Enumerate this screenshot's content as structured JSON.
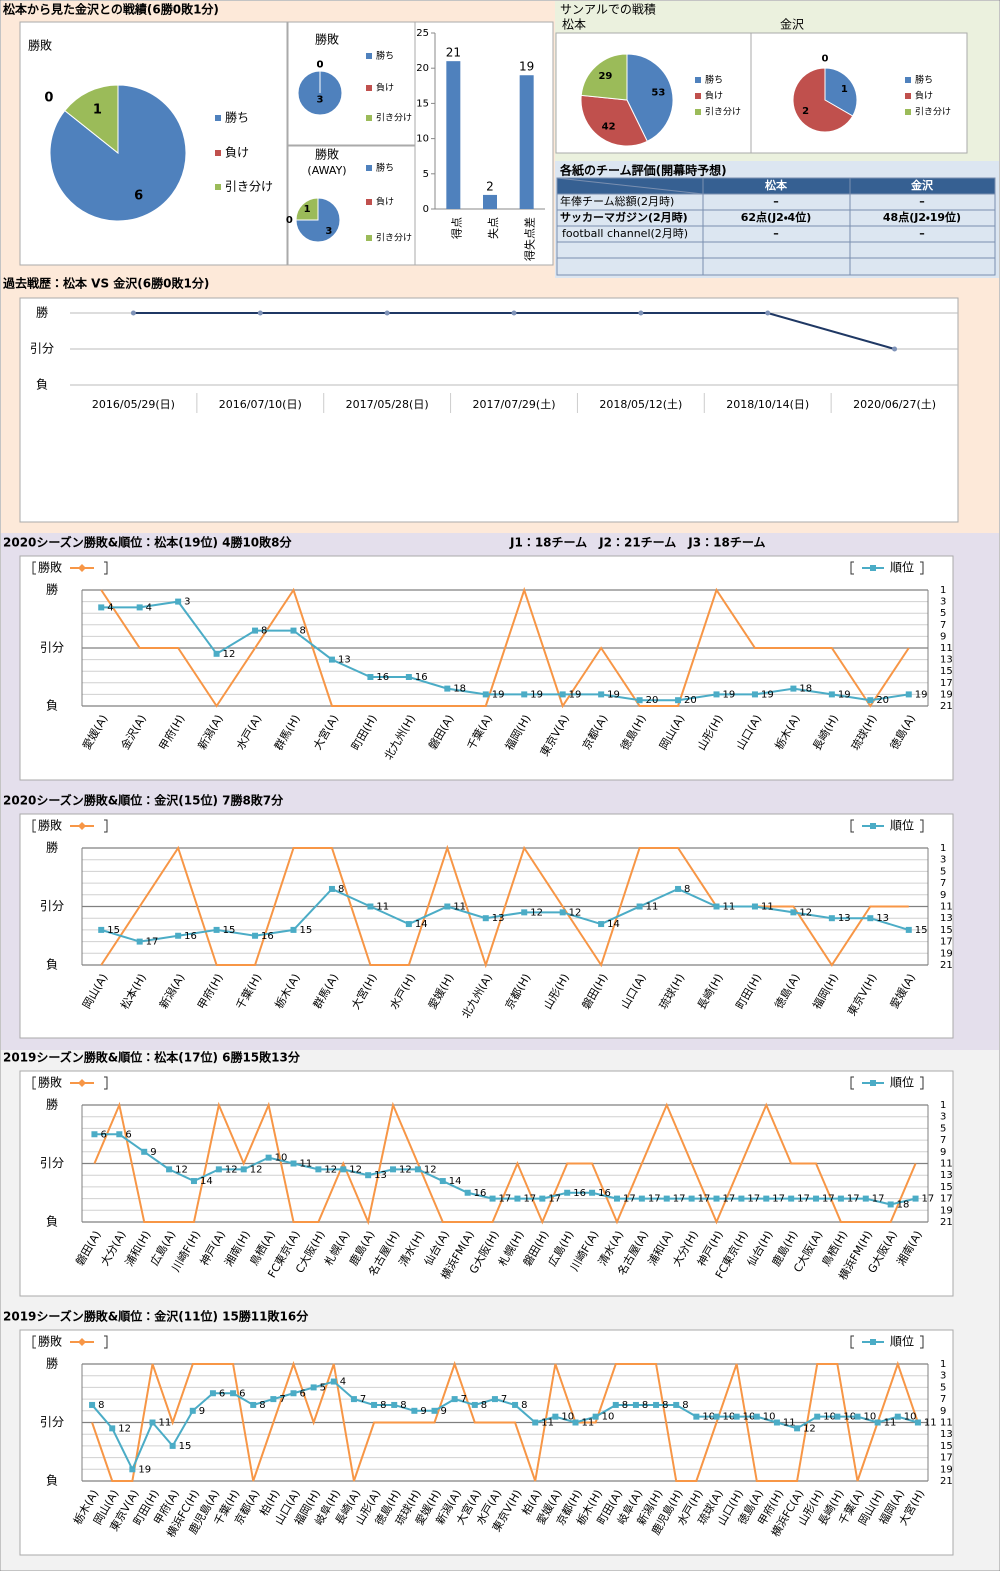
{
  "sections": {
    "record": "松本から見た金沢との戦績(6勝0敗1分)",
    "sanal": "サンアルでの戦積",
    "history": "過去戦歴：松本 VS 金沢(6勝0敗1分)",
    "s2020_matsumoto": "2020シーズン勝敗&順位：松本(19位) 4勝10敗8分",
    "leagues": "J1：18チーム　J2：21チーム　J3：18チーム",
    "s2020_kanazawa": "2020シーズン勝敗&順位：金沢(15位) 7勝8敗7分",
    "s2019_matsumoto": "2019シーズン勝敗&順位：松本(17位) 6勝15敗13分",
    "s2019_kanazawa": "2019シーズン勝敗&順位：金沢(11位) 15勝11敗16分"
  },
  "table": {
    "title": "各紙のチーム評価(開幕時予想)",
    "header": [
      "松本",
      "金沢"
    ],
    "rows": [
      [
        "年俸チーム総額(2月時)",
        "–",
        "–"
      ],
      [
        "サッカーマガジン(2月時)",
        "62点(J2・4位)",
        "48点(J2・19位)"
      ],
      [
        "football channel(2月時)",
        "–",
        "–"
      ]
    ]
  },
  "chart_data": [
    {
      "type": "pie",
      "title": "勝敗",
      "categories": [
        "勝ち",
        "負け",
        "引き分け"
      ],
      "values": [
        6,
        0,
        1
      ],
      "colors": [
        "#4f81bd",
        "#c0504d",
        "#9bbb59"
      ]
    },
    {
      "type": "pie",
      "title": "勝敗",
      "categories": [
        "勝ち",
        "負け",
        "引き分け"
      ],
      "values": [
        3,
        0,
        0
      ],
      "colors": [
        "#4f81bd",
        "#c0504d",
        "#9bbb59"
      ]
    },
    {
      "type": "pie",
      "title": "勝敗",
      "subtitle": "(AWAY)",
      "categories": [
        "勝ち",
        "負け",
        "引き分け"
      ],
      "values": [
        3,
        0,
        1
      ],
      "colors": [
        "#4f81bd",
        "#c0504d",
        "#9bbb59"
      ]
    },
    {
      "type": "bar",
      "categories": [
        "得点",
        "失点",
        "得失点差"
      ],
      "values": [
        21,
        2,
        19
      ],
      "color": "#4f81bd",
      "ylim": [
        0,
        25
      ],
      "yticks": [
        0,
        5,
        10,
        15,
        20,
        25
      ]
    },
    {
      "type": "pie",
      "title": "松本",
      "categories": [
        "勝ち",
        "負け",
        "引き分け"
      ],
      "values": [
        53,
        42,
        29
      ],
      "colors": [
        "#4f81bd",
        "#c0504d",
        "#9bbb59"
      ]
    },
    {
      "type": "pie",
      "title": "金沢",
      "categories": [
        "勝ち",
        "負け",
        "引き分け"
      ],
      "values": [
        1,
        2,
        0
      ],
      "colors": [
        "#4f81bd",
        "#c0504d",
        "#9bbb59"
      ]
    },
    {
      "type": "line",
      "categories": [
        "2016/05/29(日)",
        "2016/07/10(日)",
        "2017/05/28(日)",
        "2017/07/29(土)",
        "2018/05/12(土)",
        "2018/10/14(日)",
        "2020/06/27(土)"
      ],
      "values": [
        1,
        1,
        1,
        1,
        1,
        1,
        0
      ],
      "color": "#1f3864",
      "ylim": [
        -1,
        1
      ],
      "yticks": [
        {
          "value": -1,
          "label": "負"
        },
        {
          "value": 0,
          "label": "引分"
        },
        {
          "value": 1,
          "label": "勝"
        }
      ],
      "grid": true
    },
    {
      "type": "combo",
      "categories": [
        "愛媛(A)",
        "金沢(A)",
        "甲府(H)",
        "新潟(A)",
        "水戸(A)",
        "群馬(H)",
        "大宮(A)",
        "町田(H)",
        "北九州(H)",
        "磐田(A)",
        "千葉(A)",
        "福岡(H)",
        "東京V(A)",
        "京都(A)",
        "徳島(H)",
        "岡山(A)",
        "山形(H)",
        "山口(A)",
        "栃木(A)",
        "長崎(H)",
        "琉球(H)",
        "徳島(A)"
      ],
      "series": [
        {
          "name": "勝敗",
          "color": "#f79646",
          "values": [
            1,
            0,
            0,
            -1,
            0,
            1,
            -1,
            -1,
            -1,
            -1,
            -1,
            1,
            -1,
            0,
            -1,
            -1,
            1,
            0,
            0,
            0,
            -1,
            0
          ]
        },
        {
          "name": "順位",
          "color": "#4bacc6",
          "axis": "y2",
          "values": [
            4,
            4,
            3,
            12,
            8,
            8,
            13,
            16,
            16,
            18,
            19,
            19,
            19,
            19,
            20,
            20,
            19,
            19,
            18,
            19,
            20,
            19
          ]
        }
      ],
      "ylim": [
        -1,
        1
      ],
      "yticks": [
        {
          "value": -1,
          "label": "負"
        },
        {
          "value": 0,
          "label": "引分"
        },
        {
          "value": 1,
          "label": "勝"
        }
      ],
      "y2lim": [
        21,
        1
      ],
      "y2ticks": [
        1,
        3,
        5,
        7,
        9,
        11,
        13,
        15,
        17,
        19,
        21
      ]
    },
    {
      "type": "combo",
      "categories": [
        "岡山(A)",
        "松本(H)",
        "新潟(A)",
        "甲府(H)",
        "千葉(H)",
        "栃木(A)",
        "群馬(A)",
        "大宮(H)",
        "水戸(H)",
        "愛媛(H)",
        "北九州(A)",
        "京都(H)",
        "山形(H)",
        "磐田(H)",
        "山口(A)",
        "琉球(H)",
        "長崎(H)",
        "町田(H)",
        "徳島(A)",
        "福岡(H)",
        "東京V(H)",
        "愛媛(A)"
      ],
      "series": [
        {
          "name": "勝敗",
          "color": "#f79646",
          "values": [
            -1,
            0,
            1,
            -1,
            -1,
            1,
            1,
            -1,
            -1,
            1,
            -1,
            1,
            0,
            -1,
            1,
            1,
            0,
            0,
            0,
            -1,
            0,
            0
          ]
        },
        {
          "name": "順位",
          "color": "#4bacc6",
          "axis": "y2",
          "values": [
            15,
            17,
            16,
            15,
            16,
            15,
            8,
            11,
            14,
            11,
            13,
            12,
            12,
            14,
            11,
            8,
            11,
            11,
            12,
            13,
            13,
            15
          ]
        }
      ],
      "ylim": [
        -1,
        1
      ],
      "yticks": [
        {
          "value": -1,
          "label": "負"
        },
        {
          "value": 0,
          "label": "引分"
        },
        {
          "value": 1,
          "label": "勝"
        }
      ],
      "y2lim": [
        21,
        1
      ],
      "y2ticks": [
        1,
        3,
        5,
        7,
        9,
        11,
        13,
        15,
        17,
        19,
        21
      ]
    },
    {
      "type": "combo",
      "categories": [
        "磐田(A)",
        "大分(A)",
        "浦和(H)",
        "広島(A)",
        "川崎F(H)",
        "神戸(A)",
        "湘南(H)",
        "鳥栖(A)",
        "FC東京(A)",
        "C大阪(H)",
        "札幌(A)",
        "鹿島(A)",
        "名古屋(H)",
        "清水(H)",
        "仙台(A)",
        "横浜FM(A)",
        "G大阪(H)",
        "札幌(H)",
        "磐田(H)",
        "広島(H)",
        "川崎F(A)",
        "清水(A)",
        "名古屋(A)",
        "浦和(A)",
        "大分(H)",
        "神戸(H)",
        "FC東京(H)",
        "仙台(H)",
        "鹿島(H)",
        "C大阪(A)",
        "鳥栖(H)",
        "横浜FM(H)",
        "G大阪(A)",
        "湘南(A)"
      ],
      "series": [
        {
          "name": "勝敗",
          "color": "#f79646",
          "values": [
            0,
            1,
            -1,
            -1,
            -1,
            1,
            0,
            1,
            -1,
            -1,
            0,
            -1,
            1,
            0,
            -1,
            -1,
            -1,
            0,
            -1,
            0,
            0,
            -1,
            0,
            1,
            0,
            -1,
            0,
            1,
            0,
            0,
            -1,
            -1,
            -1,
            0
          ]
        },
        {
          "name": "順位",
          "color": "#4bacc6",
          "axis": "y2",
          "values": [
            6,
            6,
            9,
            12,
            14,
            12,
            12,
            10,
            11,
            12,
            12,
            13,
            12,
            12,
            14,
            16,
            17,
            17,
            17,
            16,
            16,
            17,
            17,
            17,
            17,
            17,
            17,
            17,
            17,
            17,
            17,
            17,
            18,
            17
          ]
        }
      ],
      "ylim": [
        -1,
        1
      ],
      "yticks": [
        {
          "value": -1,
          "label": "負"
        },
        {
          "value": 0,
          "label": "引分"
        },
        {
          "value": 1,
          "label": "勝"
        }
      ],
      "y2lim": [
        21,
        1
      ],
      "y2ticks": [
        1,
        3,
        5,
        7,
        9,
        11,
        13,
        15,
        17,
        19,
        21
      ]
    },
    {
      "type": "combo",
      "categories": [
        "栃木(A)",
        "岡山(A)",
        "東京V(A)",
        "町田(H)",
        "甲府(A)",
        "横浜FC(H)",
        "鹿児島(A)",
        "千葉(H)",
        "京都(A)",
        "柏(H)",
        "山口(A)",
        "福岡(H)",
        "岐阜(H)",
        "長崎(A)",
        "山形(A)",
        "徳島(H)",
        "琉球(H)",
        "愛媛(H)",
        "新潟(A)",
        "大宮(A)",
        "水戸(A)",
        "東京V(H)",
        "柏(A)",
        "愛媛(A)",
        "京都(H)",
        "栃木(H)",
        "町田(A)",
        "岐阜(A)",
        "新潟(H)",
        "鹿児島(H)",
        "水戸(H)",
        "琉球(A)",
        "山口(H)",
        "徳島(A)",
        "甲府(H)",
        "横浜FC(A)",
        "山形(H)",
        "長崎(H)",
        "千葉(A)",
        "岡山(H)",
        "福岡(A)",
        "大宮(H)"
      ],
      "series": [
        {
          "name": "勝敗",
          "color": "#f79646",
          "values": [
            0,
            -1,
            -1,
            1,
            0,
            1,
            1,
            1,
            -1,
            0,
            1,
            0,
            1,
            -1,
            0,
            0,
            0,
            0,
            1,
            0,
            0,
            0,
            -1,
            1,
            0,
            0,
            1,
            1,
            1,
            -1,
            -1,
            0,
            1,
            -1,
            -1,
            -1,
            1,
            1,
            -1,
            0,
            1,
            0
          ]
        },
        {
          "name": "順位",
          "color": "#4bacc6",
          "axis": "y2",
          "values": [
            8,
            12,
            19,
            11,
            15,
            9,
            6,
            6,
            8,
            7,
            6,
            5,
            4,
            7,
            8,
            8,
            9,
            9,
            7,
            8,
            7,
            8,
            11,
            10,
            11,
            10,
            8,
            8,
            8,
            8,
            10,
            10,
            10,
            10,
            11,
            12,
            10,
            10,
            10,
            11,
            10,
            11
          ]
        }
      ],
      "ylim": [
        -1,
        1
      ],
      "yticks": [
        {
          "value": -1,
          "label": "負"
        },
        {
          "value": 0,
          "label": "引分"
        },
        {
          "value": 1,
          "label": "勝"
        }
      ],
      "y2lim": [
        21,
        1
      ],
      "y2ticks": [
        1,
        3,
        5,
        7,
        9,
        11,
        13,
        15,
        17,
        19,
        21
      ]
    }
  ]
}
